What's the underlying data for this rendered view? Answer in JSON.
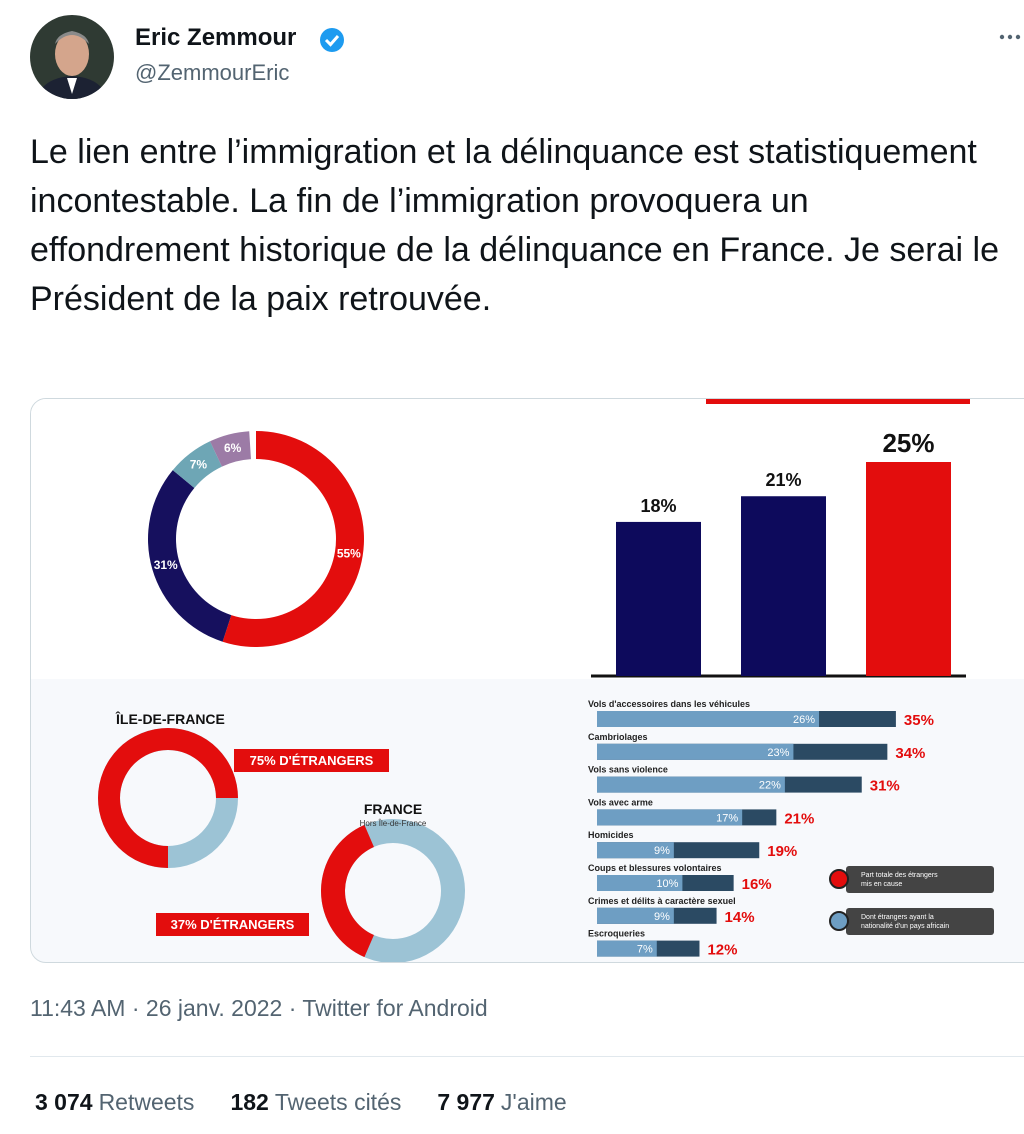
{
  "author": {
    "name": "Eric Zemmour",
    "handle": "@ZemmourEric"
  },
  "text": "Le lien entre l’immigration et la délinquance est statistiquement incontestable. La fin de l’immigration provoquera un effondrement historique de la délinquance en France. Je serai le Président de la paix retrouvée.",
  "media": {
    "donut": {
      "values": [
        55,
        31,
        7,
        6
      ],
      "value_labels": [
        "55%",
        "31%",
        "7%",
        "6%"
      ],
      "colors": [
        "#e30d0d",
        "#16105e",
        "#6ea6b5",
        "#9c7ba6"
      ]
    },
    "bars": {
      "values": [
        18,
        21,
        25
      ],
      "value_labels": [
        "18%",
        "21%",
        "25%"
      ],
      "colors": [
        "#0d0a5c",
        "#0d0a5c",
        "#e30d0d"
      ]
    },
    "regions": [
      {
        "title": "ÎLE-DE-FRANCE",
        "value": 75,
        "label": "75% D'ÉTRANGERS"
      },
      {
        "title": "FRANCE",
        "subtitle": "Hors Île-de-France",
        "value": 37,
        "label": "37% D'ÉTRANGERS"
      }
    ],
    "crimes": {
      "categories": [
        "Vols d'accessoires dans les véhicules",
        "Cambriolages",
        "Vols sans violence",
        "Vols avec arme",
        "Homicides",
        "Coups et blessures volontaires",
        "Crimes et délits à caractère sexuel",
        "Escroqueries"
      ],
      "african": [
        26,
        23,
        22,
        17,
        9,
        10,
        9,
        7
      ],
      "african_labels": [
        "26%",
        "23%",
        "22%",
        "17%",
        "9%",
        "10%",
        "9%",
        "7%"
      ],
      "total": [
        35,
        34,
        31,
        21,
        19,
        16,
        14,
        12
      ],
      "total_labels": [
        "35%",
        "34%",
        "31%",
        "21%",
        "19%",
        "16%",
        "14%",
        "12%"
      ]
    },
    "legend": [
      "Part totale des étrangers mis en cause",
      "Dont étrangers ayant la nationalité d'un pays africain"
    ]
  },
  "footer": "11:43 AM · 26 janv. 2022 · Twitter for Android",
  "stats": [
    {
      "count": "3 074",
      "label": "Retweets"
    },
    {
      "count": "182",
      "label": "Tweets cités"
    },
    {
      "count": "7 977",
      "label": "J'aime"
    }
  ]
}
